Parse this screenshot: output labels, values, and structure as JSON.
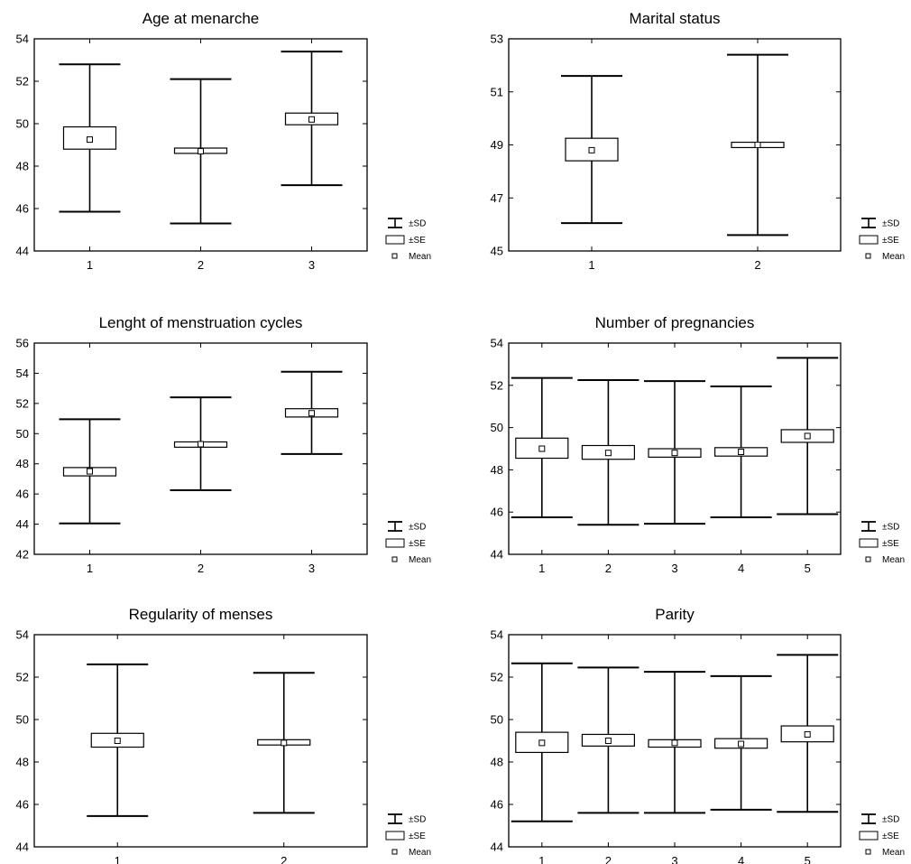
{
  "legend": {
    "sd_label": "±SD",
    "se_label": "±SE",
    "mean_label": "Mean"
  },
  "chart_data": [
    {
      "type": "box",
      "title": "Age at menarche",
      "categories": [
        "1",
        "2",
        "3"
      ],
      "ylim": [
        44,
        54
      ],
      "yticks": [
        44,
        46,
        48,
        50,
        52,
        54
      ],
      "series": [
        {
          "category": "1",
          "mean": 49.25,
          "se_low": 48.8,
          "se_high": 49.85,
          "sd_low": 45.85,
          "sd_high": 52.8
        },
        {
          "category": "2",
          "mean": 48.7,
          "se_low": 48.6,
          "se_high": 48.85,
          "sd_low": 45.3,
          "sd_high": 52.1
        },
        {
          "category": "3",
          "mean": 50.2,
          "se_low": 49.95,
          "se_high": 50.5,
          "sd_low": 47.1,
          "sd_high": 53.4
        }
      ],
      "legend_position": "right",
      "grid": false
    },
    {
      "type": "box",
      "title": "Marital status",
      "categories": [
        "1",
        "2"
      ],
      "ylim": [
        45,
        53
      ],
      "yticks": [
        45,
        47,
        49,
        51,
        53
      ],
      "series": [
        {
          "category": "1",
          "mean": 48.8,
          "se_low": 48.4,
          "se_high": 49.25,
          "sd_low": 46.05,
          "sd_high": 51.6
        },
        {
          "category": "2",
          "mean": 49.0,
          "se_low": 48.9,
          "se_high": 49.1,
          "sd_low": 45.6,
          "sd_high": 52.4
        }
      ],
      "legend_position": "right",
      "grid": false
    },
    {
      "type": "box",
      "title": "Lenght of menstruation cycles",
      "categories": [
        "1",
        "2",
        "3"
      ],
      "ylim": [
        42,
        56
      ],
      "yticks": [
        42,
        44,
        46,
        48,
        50,
        52,
        54,
        56
      ],
      "series": [
        {
          "category": "1",
          "mean": 47.5,
          "se_low": 47.2,
          "se_high": 47.75,
          "sd_low": 44.05,
          "sd_high": 50.95
        },
        {
          "category": "2",
          "mean": 49.3,
          "se_low": 49.1,
          "se_high": 49.45,
          "sd_low": 46.25,
          "sd_high": 52.4
        },
        {
          "category": "3",
          "mean": 51.35,
          "se_low": 51.1,
          "se_high": 51.65,
          "sd_low": 48.65,
          "sd_high": 54.1
        }
      ],
      "legend_position": "right",
      "grid": false
    },
    {
      "type": "box",
      "title": "Number of pregnancies",
      "categories": [
        "1",
        "2",
        "3",
        "4",
        "5"
      ],
      "ylim": [
        44,
        54
      ],
      "yticks": [
        44,
        46,
        48,
        50,
        52,
        54
      ],
      "series": [
        {
          "category": "1",
          "mean": 49.0,
          "se_low": 48.55,
          "se_high": 49.5,
          "sd_low": 45.75,
          "sd_high": 52.35
        },
        {
          "category": "2",
          "mean": 48.8,
          "se_low": 48.5,
          "se_high": 49.15,
          "sd_low": 45.4,
          "sd_high": 52.25
        },
        {
          "category": "3",
          "mean": 48.8,
          "se_low": 48.6,
          "se_high": 49.0,
          "sd_low": 45.45,
          "sd_high": 52.2
        },
        {
          "category": "4",
          "mean": 48.85,
          "se_low": 48.65,
          "se_high": 49.05,
          "sd_low": 45.75,
          "sd_high": 51.95
        },
        {
          "category": "5",
          "mean": 49.6,
          "se_low": 49.3,
          "se_high": 49.9,
          "sd_low": 45.9,
          "sd_high": 53.3
        }
      ],
      "legend_position": "right",
      "grid": false
    },
    {
      "type": "box",
      "title": "Regularity of menses",
      "categories": [
        "1",
        "2"
      ],
      "ylim": [
        44,
        54
      ],
      "yticks": [
        44,
        46,
        48,
        50,
        52,
        54
      ],
      "series": [
        {
          "category": "1",
          "mean": 49.0,
          "se_low": 48.7,
          "se_high": 49.35,
          "sd_low": 45.45,
          "sd_high": 52.6
        },
        {
          "category": "2",
          "mean": 48.9,
          "se_low": 48.8,
          "se_high": 49.05,
          "sd_low": 45.6,
          "sd_high": 52.2
        }
      ],
      "legend_position": "right",
      "grid": false
    },
    {
      "type": "box",
      "title": "Parity",
      "categories": [
        "1",
        "2",
        "3",
        "4",
        "5"
      ],
      "ylim": [
        44,
        54
      ],
      "yticks": [
        44,
        46,
        48,
        50,
        52,
        54
      ],
      "series": [
        {
          "category": "1",
          "mean": 48.9,
          "se_low": 48.45,
          "se_high": 49.4,
          "sd_low": 45.2,
          "sd_high": 52.65
        },
        {
          "category": "2",
          "mean": 49.0,
          "se_low": 48.75,
          "se_high": 49.3,
          "sd_low": 45.6,
          "sd_high": 52.45
        },
        {
          "category": "3",
          "mean": 48.9,
          "se_low": 48.7,
          "se_high": 49.05,
          "sd_low": 45.6,
          "sd_high": 52.25
        },
        {
          "category": "4",
          "mean": 48.85,
          "se_low": 48.65,
          "se_high": 49.1,
          "sd_low": 45.75,
          "sd_high": 52.05
        },
        {
          "category": "5",
          "mean": 49.3,
          "se_low": 48.95,
          "se_high": 49.7,
          "sd_low": 45.65,
          "sd_high": 53.05
        }
      ],
      "legend_position": "right",
      "grid": false
    }
  ]
}
